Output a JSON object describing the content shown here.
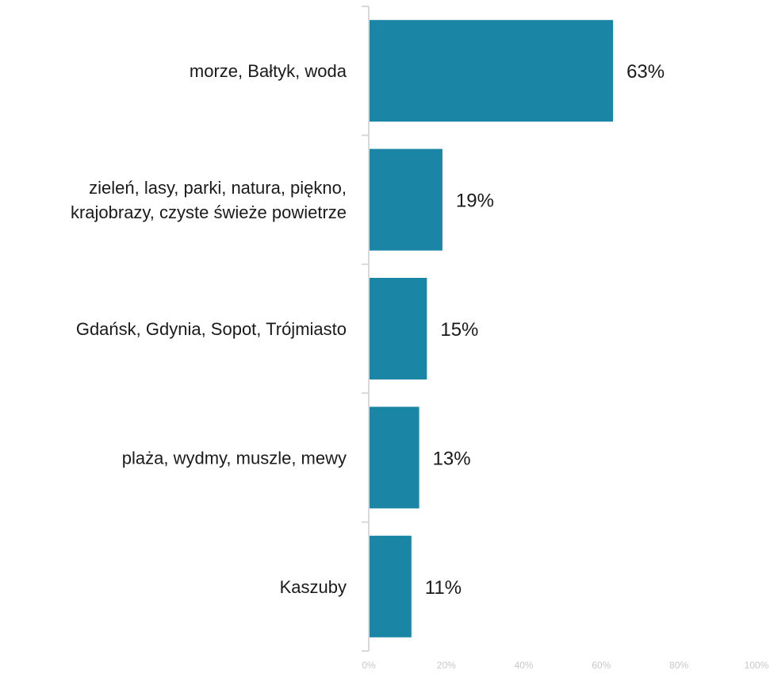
{
  "chart_data": {
    "type": "bar",
    "orientation": "horizontal",
    "categories": [
      [
        "morze, Bałtyk, woda"
      ],
      [
        "zieleń, lasy, parki, natura, piękno,",
        "krajobrazy, czyste świeże powietrze"
      ],
      [
        "Gdańsk, Gdynia, Sopot, Trójmiasto"
      ],
      [
        "plaża, wydmy, muszle, mewy"
      ],
      [
        "Kaszuby"
      ]
    ],
    "values": [
      63,
      19,
      15,
      13,
      11
    ],
    "value_labels": [
      "63%",
      "19%",
      "15%",
      "13%",
      "11%"
    ],
    "xlim": [
      0,
      100
    ],
    "x_ticks": [
      0,
      20,
      40,
      60,
      80,
      100
    ],
    "x_tick_labels": [
      "0%",
      "20%",
      "40%",
      "60%",
      "80%",
      "100%"
    ],
    "title": "",
    "xlabel": "",
    "ylabel": "",
    "grid": false,
    "legend": "none",
    "bar_color": "#1a85a4",
    "axis_color": "#d9d9d9",
    "tick_label_color": "#c8c8c8"
  }
}
